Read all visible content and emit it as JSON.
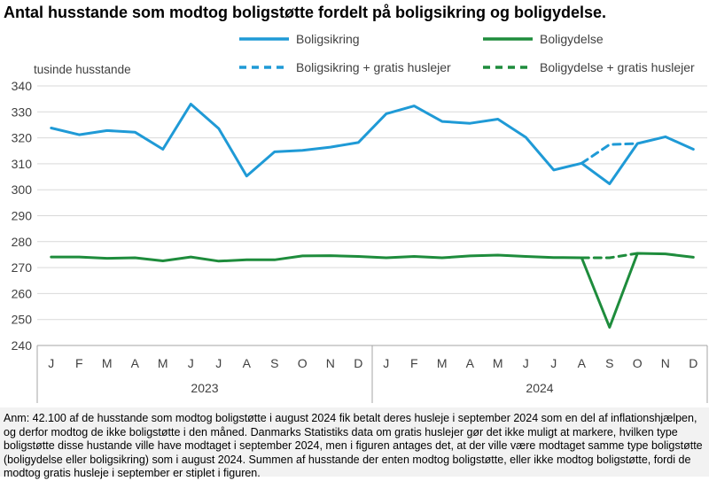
{
  "title": "Antal husstande som modtog boligstøtte fordelt på boligsikring og boligydelse.",
  "footnote": "Anm: 42.100 af de husstande som modtog boligstøtte i august 2024 fik betalt deres husleje i september 2024 som en del af inflationshjælpen, og derfor modtog de ikke boligstøtte i den måned. Danmarks Statistiks data om gratis huslejer gør det ikke muligt at markere, hvilken type boligstøtte disse hustande ville have modtaget i september 2024, men i figuren antages det, at der ville være modtaget samme type boligstøtte (boligydelse eller boligsikring) som i august 2024. Summen af husstande der enten modtog boligstøtte, eller ikke modtog boligstøtte, fordi de modtog gratis husleje i september er stiplet i figuren.",
  "colors": {
    "boligsikring": "#1f9ad6",
    "boligydelse": "#1e8c3c",
    "grid": "#d9d9d9",
    "axis": "#a6a6a6"
  },
  "chart_data": {
    "type": "line",
    "ylabel": "tusinde husstande",
    "ylim": [
      240,
      340
    ],
    "yticks": [
      240,
      250,
      260,
      270,
      280,
      290,
      300,
      310,
      320,
      330,
      340
    ],
    "grid": true,
    "legend_position": "top",
    "categories": [
      "J",
      "F",
      "M",
      "A",
      "M",
      "J",
      "J",
      "A",
      "S",
      "O",
      "N",
      "D",
      "J",
      "F",
      "M",
      "A",
      "M",
      "J",
      "J",
      "A",
      "S",
      "O",
      "N",
      "D"
    ],
    "years": [
      {
        "label": "2023",
        "start": 0,
        "end": 11
      },
      {
        "label": "2024",
        "start": 12,
        "end": 23
      }
    ],
    "series": [
      {
        "name": "Boligsikring",
        "color": "#1f9ad6",
        "dashed": false,
        "values": [
          323.8,
          321.2,
          322.8,
          322.2,
          315.6,
          333.0,
          323.6,
          305.3,
          314.6,
          315.2,
          316.4,
          318.2,
          329.3,
          332.3,
          326.3,
          325.6,
          327.2,
          320.2,
          307.6,
          310.2,
          302.3,
          317.8,
          320.4,
          315.6
        ]
      },
      {
        "name": "Boligydelse",
        "color": "#1e8c3c",
        "dashed": false,
        "values": [
          274.1,
          274.1,
          273.6,
          273.8,
          272.6,
          274.1,
          272.5,
          273.0,
          273.0,
          274.5,
          274.6,
          274.3,
          273.8,
          274.3,
          273.8,
          274.5,
          274.8,
          274.3,
          273.9,
          273.8,
          247.0,
          275.5,
          275.3,
          274.0
        ]
      },
      {
        "name": "Boligsikring + gratis huslejer",
        "color": "#1f9ad6",
        "dashed": true,
        "values": [
          null,
          null,
          null,
          null,
          null,
          null,
          null,
          null,
          null,
          null,
          null,
          null,
          null,
          null,
          null,
          null,
          null,
          null,
          null,
          310.2,
          317.4,
          317.8,
          null,
          null
        ]
      },
      {
        "name": "Boligydelse + gratis huslejer",
        "color": "#1e8c3c",
        "dashed": true,
        "values": [
          null,
          null,
          null,
          null,
          null,
          null,
          null,
          null,
          null,
          null,
          null,
          null,
          null,
          null,
          null,
          null,
          null,
          null,
          null,
          273.8,
          273.8,
          275.5,
          null,
          null
        ]
      }
    ]
  }
}
